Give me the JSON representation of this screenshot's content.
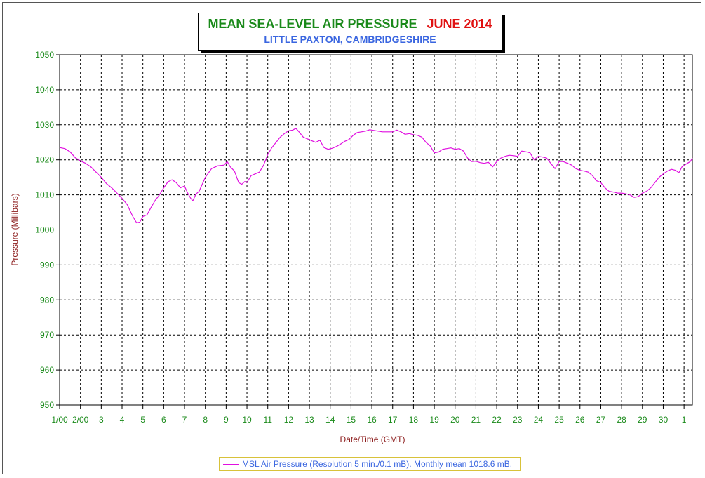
{
  "title": {
    "main": "MEAN SEA-LEVEL AIR PRESSURE",
    "month": "JUNE 2014",
    "subtitle": "LITTLE PAXTON, CAMBRIDGESHIRE"
  },
  "legend": {
    "text": "MSL Air Pressure (Resolution 5 min./0.1 mB). Monthly mean 1018.6 mB."
  },
  "colors": {
    "series": "#e010e0",
    "axis_text": "#1a8a1a",
    "axis_title": "#8b1a1a",
    "grid": "#000000",
    "title_main": "#1a8a1a",
    "title_month": "#e01010",
    "subtitle": "#3a66e0"
  },
  "chart_data": {
    "type": "line",
    "title": "MEAN SEA-LEVEL AIR PRESSURE   JUNE 2014",
    "subtitle": "LITTLE PAXTON, CAMBRIDGESHIRE",
    "xlabel": "Date/Time (GMT)",
    "ylabel": "Pressure (Millibars)",
    "ylim": [
      950,
      1050
    ],
    "yticks": [
      950,
      960,
      970,
      980,
      990,
      1000,
      1010,
      1020,
      1030,
      1040,
      1050
    ],
    "xlim": [
      1,
      31.4
    ],
    "xticks": [
      {
        "x": 1,
        "label": "1/00"
      },
      {
        "x": 2,
        "label": "2/00"
      },
      {
        "x": 3,
        "label": "3"
      },
      {
        "x": 4,
        "label": "4"
      },
      {
        "x": 5,
        "label": "5"
      },
      {
        "x": 6,
        "label": "6"
      },
      {
        "x": 7,
        "label": "7"
      },
      {
        "x": 8,
        "label": "8"
      },
      {
        "x": 9,
        "label": "9"
      },
      {
        "x": 10,
        "label": "10"
      },
      {
        "x": 11,
        "label": "11"
      },
      {
        "x": 12,
        "label": "12"
      },
      {
        "x": 13,
        "label": "13"
      },
      {
        "x": 14,
        "label": "14"
      },
      {
        "x": 15,
        "label": "15"
      },
      {
        "x": 16,
        "label": "16"
      },
      {
        "x": 17,
        "label": "17"
      },
      {
        "x": 18,
        "label": "18"
      },
      {
        "x": 19,
        "label": "19"
      },
      {
        "x": 20,
        "label": "20"
      },
      {
        "x": 21,
        "label": "21"
      },
      {
        "x": 22,
        "label": "22"
      },
      {
        "x": 23,
        "label": "23"
      },
      {
        "x": 24,
        "label": "24"
      },
      {
        "x": 25,
        "label": "25"
      },
      {
        "x": 26,
        "label": "26"
      },
      {
        "x": 27,
        "label": "27"
      },
      {
        "x": 28,
        "label": "28"
      },
      {
        "x": 29,
        "label": "29"
      },
      {
        "x": 30,
        "label": "30"
      },
      {
        "x": 31,
        "label": "1"
      }
    ],
    "grid": true,
    "legend_position": "bottom-center",
    "series": [
      {
        "name": "MSL Air Pressure (Resolution 5 min./0.1 mB). Monthly mean 1018.6 mB.",
        "points": [
          [
            1.0,
            1023.5
          ],
          [
            1.25,
            1023.2
          ],
          [
            1.5,
            1022.3
          ],
          [
            1.75,
            1020.6
          ],
          [
            2.0,
            1019.7
          ],
          [
            2.25,
            1019.0
          ],
          [
            2.5,
            1018.0
          ],
          [
            2.75,
            1016.5
          ],
          [
            3.0,
            1015.0
          ],
          [
            3.25,
            1013.2
          ],
          [
            3.5,
            1012.0
          ],
          [
            3.75,
            1010.5
          ],
          [
            4.0,
            1009.0
          ],
          [
            4.25,
            1007.2
          ],
          [
            4.5,
            1004.0
          ],
          [
            4.7,
            1002.0
          ],
          [
            4.85,
            1002.2
          ],
          [
            5.0,
            1003.8
          ],
          [
            5.2,
            1004.3
          ],
          [
            5.4,
            1006.5
          ],
          [
            5.6,
            1008.5
          ],
          [
            5.8,
            1010.0
          ],
          [
            6.0,
            1012.0
          ],
          [
            6.2,
            1013.7
          ],
          [
            6.4,
            1014.3
          ],
          [
            6.6,
            1013.5
          ],
          [
            6.8,
            1012.0
          ],
          [
            7.0,
            1012.5
          ],
          [
            7.15,
            1010.5
          ],
          [
            7.3,
            1009.0
          ],
          [
            7.4,
            1008.3
          ],
          [
            7.55,
            1010.2
          ],
          [
            7.7,
            1011.0
          ],
          [
            8.0,
            1015.0
          ],
          [
            8.3,
            1017.5
          ],
          [
            8.6,
            1018.3
          ],
          [
            8.9,
            1018.5
          ],
          [
            9.05,
            1019.5
          ],
          [
            9.2,
            1018.0
          ],
          [
            9.4,
            1016.8
          ],
          [
            9.6,
            1013.5
          ],
          [
            9.75,
            1013.0
          ],
          [
            9.9,
            1013.8
          ],
          [
            10.0,
            1013.5
          ],
          [
            10.2,
            1015.5
          ],
          [
            10.4,
            1016.0
          ],
          [
            10.6,
            1016.5
          ],
          [
            10.8,
            1018.5
          ],
          [
            11.0,
            1021.5
          ],
          [
            11.2,
            1023.5
          ],
          [
            11.4,
            1025.0
          ],
          [
            11.6,
            1026.5
          ],
          [
            11.8,
            1027.5
          ],
          [
            12.0,
            1028.3
          ],
          [
            12.2,
            1028.5
          ],
          [
            12.35,
            1029.0
          ],
          [
            12.5,
            1028.0
          ],
          [
            12.7,
            1026.5
          ],
          [
            12.9,
            1026.0
          ],
          [
            13.1,
            1025.5
          ],
          [
            13.3,
            1025.0
          ],
          [
            13.5,
            1025.6
          ],
          [
            13.7,
            1023.5
          ],
          [
            13.9,
            1023.0
          ],
          [
            14.1,
            1023.3
          ],
          [
            14.3,
            1023.8
          ],
          [
            14.5,
            1024.5
          ],
          [
            14.7,
            1025.3
          ],
          [
            14.9,
            1025.8
          ],
          [
            15.1,
            1027.0
          ],
          [
            15.3,
            1027.8
          ],
          [
            15.5,
            1028.0
          ],
          [
            15.7,
            1028.2
          ],
          [
            15.9,
            1028.6
          ],
          [
            16.1,
            1028.4
          ],
          [
            16.3,
            1028.2
          ],
          [
            16.5,
            1028.0
          ],
          [
            16.8,
            1028.0
          ],
          [
            17.0,
            1028.0
          ],
          [
            17.2,
            1028.5
          ],
          [
            17.4,
            1028.0
          ],
          [
            17.6,
            1027.3
          ],
          [
            17.8,
            1027.5
          ],
          [
            18.0,
            1027.2
          ],
          [
            18.2,
            1027.0
          ],
          [
            18.4,
            1026.5
          ],
          [
            18.6,
            1025.0
          ],
          [
            18.8,
            1024.0
          ],
          [
            19.0,
            1022.0
          ],
          [
            19.2,
            1022.2
          ],
          [
            19.4,
            1023.0
          ],
          [
            19.6,
            1023.2
          ],
          [
            19.8,
            1023.4
          ],
          [
            20.0,
            1023.0
          ],
          [
            20.2,
            1023.2
          ],
          [
            20.4,
            1022.5
          ],
          [
            20.6,
            1020.5
          ],
          [
            20.8,
            1019.5
          ],
          [
            21.0,
            1019.6
          ],
          [
            21.2,
            1019.2
          ],
          [
            21.4,
            1019.0
          ],
          [
            21.6,
            1019.3
          ],
          [
            21.8,
            1018.0
          ],
          [
            22.0,
            1019.5
          ],
          [
            22.2,
            1020.5
          ],
          [
            22.4,
            1021.0
          ],
          [
            22.6,
            1021.3
          ],
          [
            22.8,
            1021.2
          ],
          [
            23.0,
            1021.0
          ],
          [
            23.2,
            1022.5
          ],
          [
            23.4,
            1022.3
          ],
          [
            23.6,
            1022.0
          ],
          [
            23.8,
            1020.0
          ],
          [
            24.0,
            1021.0
          ],
          [
            24.2,
            1020.8
          ],
          [
            24.4,
            1020.5
          ],
          [
            24.6,
            1019.0
          ],
          [
            24.8,
            1017.5
          ],
          [
            25.0,
            1019.5
          ],
          [
            25.2,
            1019.5
          ],
          [
            25.4,
            1019.0
          ],
          [
            25.6,
            1018.5
          ],
          [
            25.8,
            1017.5
          ],
          [
            26.0,
            1017.0
          ],
          [
            26.2,
            1016.8
          ],
          [
            26.4,
            1016.5
          ],
          [
            26.6,
            1015.5
          ],
          [
            26.8,
            1014.0
          ],
          [
            27.0,
            1013.5
          ],
          [
            27.2,
            1012.0
          ],
          [
            27.4,
            1011.0
          ],
          [
            27.6,
            1010.8
          ],
          [
            27.8,
            1010.5
          ],
          [
            28.0,
            1010.5
          ],
          [
            28.2,
            1010.3
          ],
          [
            28.4,
            1010.0
          ],
          [
            28.6,
            1009.3
          ],
          [
            28.8,
            1009.5
          ],
          [
            29.0,
            1010.5
          ],
          [
            29.2,
            1011.0
          ],
          [
            29.4,
            1012.0
          ],
          [
            29.6,
            1013.5
          ],
          [
            29.8,
            1015.0
          ],
          [
            30.0,
            1016.0
          ],
          [
            30.2,
            1016.8
          ],
          [
            30.4,
            1017.3
          ],
          [
            30.6,
            1017.0
          ],
          [
            30.75,
            1016.3
          ],
          [
            30.9,
            1018.0
          ],
          [
            31.1,
            1018.8
          ],
          [
            31.3,
            1019.5
          ],
          [
            31.4,
            1020.5
          ]
        ]
      }
    ]
  }
}
